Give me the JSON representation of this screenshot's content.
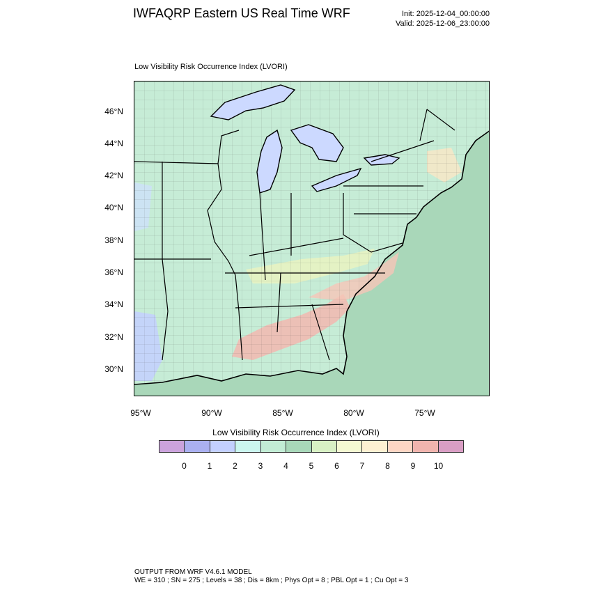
{
  "header": {
    "title": "IWFAQRP Eastern US Real Time WRF",
    "init": "Init: 2025-12-04_00:00:00",
    "valid": "Valid: 2025-12-06_23:00:00"
  },
  "map": {
    "subtitle": "Low Visibility Risk Occurrence Index   (LVORI)",
    "lat_labels": [
      "46°N",
      "44°N",
      "42°N",
      "40°N",
      "38°N",
      "36°N",
      "34°N",
      "32°N",
      "30°N"
    ],
    "lon_labels": [
      "95°W",
      "90°W",
      "85°W",
      "80°W",
      "75°W"
    ],
    "colors": {
      "ocean": "#a9d7b9",
      "lakes": "#ccd9ff",
      "land_base": "#c6ecd6",
      "high_risk": "#f2b8b0",
      "mid_risk": "#e7f3c2"
    }
  },
  "colorbar": {
    "title": "Low Visibility Risk Occurrence Index  (LVORI)",
    "colors": [
      "#cba3dc",
      "#aab0f0",
      "#c3d0ff",
      "#cbf6ef",
      "#c2ecd5",
      "#a8d7b9",
      "#d8f0c4",
      "#f4f9d2",
      "#fdf0d2",
      "#fdd6c4",
      "#f0b4ae",
      "#d99ec4"
    ],
    "labels": [
      "0",
      "1",
      "2",
      "3",
      "4",
      "5",
      "6",
      "7",
      "8",
      "9",
      "10"
    ]
  },
  "footer": {
    "line1": "OUTPUT FROM WRF V4.6.1 MODEL",
    "line2": "WE = 310 ; SN = 275 ; Levels = 38 ; Dis = 8km ; Phys Opt = 8 ; PBL Opt = 1 ; Cu Opt = 3"
  }
}
